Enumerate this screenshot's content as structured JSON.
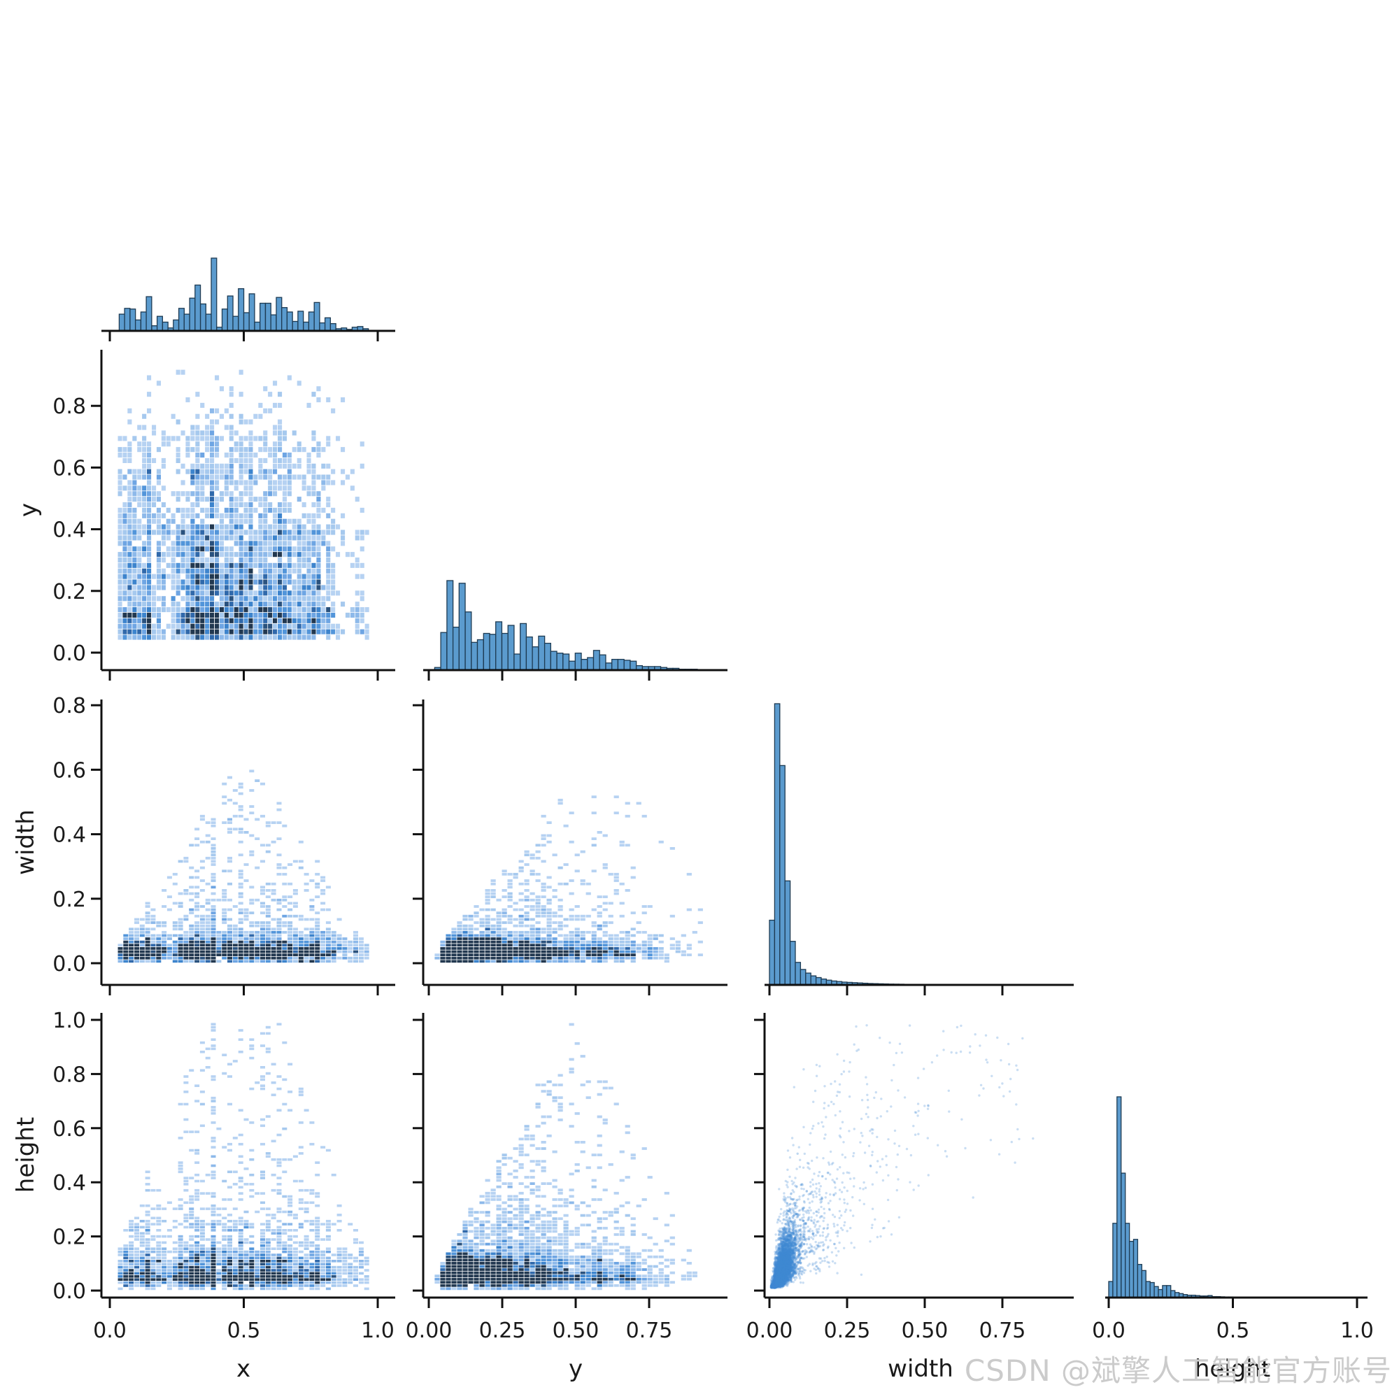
{
  "figure": {
    "type": "seaborn-pairplot-corner",
    "background": "#ffffff",
    "variables": [
      "x",
      "y",
      "width",
      "height"
    ]
  },
  "watermark": {
    "text": "CSDN @斌擎人工智能官方账号",
    "color": "#cbcbcb"
  },
  "style": {
    "bar_fill": "#5b9bce",
    "bar_edge": "#1d3a52",
    "axis_color": "#111111",
    "tick_label_color": "#1a1a1a",
    "scatter_color": "#4089d4",
    "heat_colors": [
      "#ffffff",
      "#b6d2f2",
      "#a6c9ee",
      "#8db9ea",
      "#6ea5e3",
      "#5295da",
      "#3d84cd",
      "#3069ab",
      "#2a527e",
      "#223850"
    ]
  },
  "chart_data": {
    "type": "heatmap",
    "subtype": "pairplot-hist",
    "corner": true,
    "title": "",
    "variables": [
      "x",
      "y",
      "width",
      "height"
    ],
    "columns": [
      {
        "var": "x",
        "title": "x",
        "xlim": [
          -0.03,
          1.07
        ],
        "tick_labels": [
          "0.0",
          "0.5",
          "1.0"
        ],
        "tick_values": [
          0.0,
          0.5,
          1.0
        ]
      },
      {
        "var": "y",
        "title": "y",
        "xlim": [
          -0.02,
          1.02
        ],
        "tick_labels": [
          "0.00",
          "0.25",
          "0.50",
          "0.75"
        ],
        "tick_values": [
          0.0,
          0.25,
          0.5,
          0.75
        ]
      },
      {
        "var": "width",
        "title": "width",
        "xlim": [
          -0.02,
          0.98
        ],
        "tick_labels": [
          "0.00",
          "0.25",
          "0.50",
          "0.75"
        ],
        "tick_values": [
          0.0,
          0.25,
          0.5,
          0.75
        ]
      },
      {
        "var": "height",
        "title": "height",
        "xlim": [
          -0.01,
          1.04
        ],
        "tick_labels": [
          "0.0",
          "0.5",
          "1.0"
        ],
        "tick_values": [
          0.0,
          0.5,
          1.0
        ]
      }
    ],
    "rows": [
      {
        "var": "y",
        "title": "y",
        "ylim": [
          0,
          0.98
        ],
        "tick_labels": [
          "0.0",
          "0.2",
          "0.4",
          "0.6",
          "0.8"
        ],
        "tick_values": [
          0.0,
          0.2,
          0.4,
          0.6,
          0.8
        ]
      },
      {
        "var": "width",
        "title": "width",
        "ylim": [
          -0.07,
          0.82
        ],
        "tick_labels": [
          "0.0",
          "0.2",
          "0.4",
          "0.6",
          "0.8"
        ],
        "tick_values": [
          0.0,
          0.2,
          0.4,
          0.6,
          0.8
        ]
      },
      {
        "var": "height",
        "title": "height",
        "ylim": [
          -0.03,
          1.03
        ],
        "tick_labels": [
          "0.0",
          "0.2",
          "0.4",
          "0.6",
          "0.8",
          "1.0"
        ],
        "tick_values": [
          0.0,
          0.2,
          0.4,
          0.6,
          0.8,
          1.0
        ]
      }
    ],
    "marginals": {
      "x": {
        "range": [
          0.035,
          0.965
        ],
        "values": [
          0.23,
          0.31,
          0.3,
          0.15,
          0.26,
          0.47,
          0.07,
          0.2,
          0.12,
          0.04,
          0.15,
          0.31,
          0.23,
          0.45,
          0.63,
          0.37,
          0.23,
          1.0,
          0.05,
          0.3,
          0.48,
          0.2,
          0.58,
          0.25,
          0.51,
          0.12,
          0.38,
          0.38,
          0.22,
          0.46,
          0.32,
          0.26,
          0.13,
          0.27,
          0.12,
          0.26,
          0.39,
          0.11,
          0.18,
          0.1,
          0.03,
          0.04,
          0.02,
          0.05,
          0.06,
          0.03
        ]
      },
      "y": {
        "range": [
          0.02,
          0.935
        ],
        "values": [
          0.03,
          0.42,
          1.0,
          0.48,
          0.97,
          0.65,
          0.31,
          0.34,
          0.41,
          0.4,
          0.54,
          0.41,
          0.5,
          0.18,
          0.52,
          0.37,
          0.26,
          0.38,
          0.3,
          0.21,
          0.19,
          0.18,
          0.1,
          0.19,
          0.12,
          0.14,
          0.22,
          0.17,
          0.08,
          0.12,
          0.12,
          0.11,
          0.1,
          0.05,
          0.04,
          0.04,
          0.04,
          0.03,
          0.02,
          0.02,
          0.01,
          0.01,
          0.01,
          0.005
        ]
      },
      "width": {
        "range": [
          0.0,
          0.6
        ],
        "values": [
          0.23,
          1.0,
          0.78,
          0.37,
          0.155,
          0.08,
          0.055,
          0.042,
          0.032,
          0.026,
          0.021,
          0.017,
          0.014,
          0.012,
          0.01,
          0.009,
          0.008,
          0.007,
          0.006,
          0.005,
          0.0045,
          0.004,
          0.0035,
          0.003,
          0.0027,
          0.0024,
          0.002,
          0.0018,
          0.0015,
          0.0013,
          0.0011,
          0.0009,
          0.0008,
          0.0006,
          0.0005,
          0.0004
        ]
      },
      "height": {
        "range": [
          0.0,
          0.6
        ],
        "values": [
          0.08,
          0.37,
          1.0,
          0.62,
          0.37,
          0.28,
          0.29,
          0.165,
          0.135,
          0.08,
          0.075,
          0.055,
          0.04,
          0.06,
          0.06,
          0.035,
          0.025,
          0.02,
          0.015,
          0.012,
          0.012,
          0.01,
          0.008,
          0.008,
          0.01,
          0.005,
          0.005,
          0.004,
          0.003,
          0.003,
          0.002,
          0.002,
          0.0015,
          0.001,
          0.001,
          0.001
        ]
      }
    },
    "panels": [
      {
        "id": "hist-x",
        "row": 0,
        "col": 0,
        "kind": "hist",
        "note": "marginal histogram of x, broad multimodal over 0.05-0.95, peak near x=0.38"
      },
      {
        "id": "y-vs-x",
        "row": 1,
        "col": 0,
        "kind": "hist2d",
        "note": "near-uniform light coverage x 0.03-0.97, y 0.05-0.93; darker cells in valley from (0.12,0.62) to (0.5,0.12) and band y 0.1-0.22 for x 0.3-0.8"
      },
      {
        "id": "hist-y",
        "row": 1,
        "col": 1,
        "kind": "hist",
        "note": "right-skewed, peak near y=0.08, tail to 0.93"
      },
      {
        "id": "width-vs-x",
        "row": 2,
        "col": 0,
        "kind": "hist2d",
        "note": "dense dark band width 0.03-0.12 across all x; sparse dome up to width 0.6 near x=0.4"
      },
      {
        "id": "width-vs-y",
        "row": 2,
        "col": 1,
        "kind": "hist2d",
        "note": "fan from origin, width <= ~1.15y, dense dark cluster y 0.08-0.3 width 0.03-0.09"
      },
      {
        "id": "hist-width",
        "row": 2,
        "col": 2,
        "kind": "hist",
        "note": "sharp peak near width=0.03, long thin tail to 0.6"
      },
      {
        "id": "height-vs-x",
        "row": 3,
        "col": 0,
        "kind": "hist2d",
        "note": "dense band height 0.05-0.2 across x; sparse cells up to height 1.0"
      },
      {
        "id": "height-vs-y",
        "row": 3,
        "col": 1,
        "kind": "hist2d",
        "note": "triangle with apex (y=0.5, h=1.0), h <= 2*min(y,1-y); dark cluster at y 0.1-0.25, h 0.05-0.1"
      },
      {
        "id": "height-vs-width",
        "row": 3,
        "col": 2,
        "kind": "scatter",
        "note": "fan of tiny dots from origin, h ~ 0.8w..6w, very dense dark core near (0.05,0.08), reaches (0.85,0.97)"
      },
      {
        "id": "hist-height",
        "row": 3,
        "col": 3,
        "kind": "hist",
        "note": "right-skewed, peak near height=0.07, small bump near 0.25, tail to 0.6"
      }
    ]
  }
}
